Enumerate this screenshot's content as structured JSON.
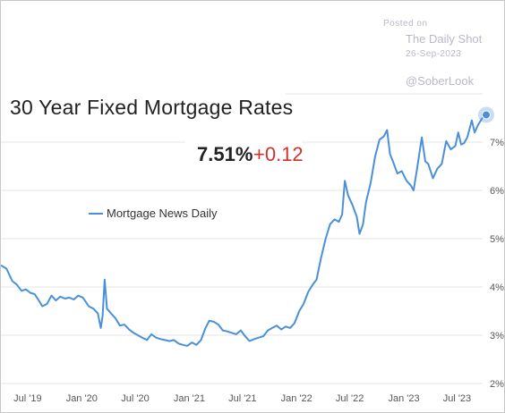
{
  "watermark": {
    "posted": "Posted on",
    "source": "The Daily Shot",
    "date": "26-Sep-2023",
    "handle": "@SoberLook"
  },
  "colors": {
    "series": "#4a90d9",
    "change": "#d0312d",
    "grid": "#e6e6e6"
  },
  "chart_data": {
    "type": "line",
    "title": "30 Year Fixed Mortgage Rates",
    "current_value": "7.51%",
    "change": "+0.12",
    "legend_position": "left",
    "grid": true,
    "y_axis_side": "right",
    "ylim": [
      2.0,
      8.0
    ],
    "xlim": [
      "2019-04-01",
      "2023-09-26"
    ],
    "y_ticks": [
      {
        "value": 2,
        "label": "2%"
      },
      {
        "value": 3,
        "label": "3%"
      },
      {
        "value": 4,
        "label": "4%"
      },
      {
        "value": 5,
        "label": "5%"
      },
      {
        "value": 6,
        "label": "6%"
      },
      {
        "value": 7,
        "label": "7%"
      }
    ],
    "x_ticks": [
      {
        "date": "2019-07-01",
        "label": "Jul '19"
      },
      {
        "date": "2020-01-01",
        "label": "Jan '20"
      },
      {
        "date": "2020-07-01",
        "label": "Jul '20"
      },
      {
        "date": "2021-01-01",
        "label": "Jan '21"
      },
      {
        "date": "2021-07-01",
        "label": "Jul '21"
      },
      {
        "date": "2022-01-01",
        "label": "Jan '22"
      },
      {
        "date": "2022-07-01",
        "label": "Jul '22"
      },
      {
        "date": "2023-01-01",
        "label": "Jan '23"
      },
      {
        "date": "2023-07-01",
        "label": "Jul '23"
      }
    ],
    "series": [
      {
        "name": "Mortgage News Daily",
        "points": [
          [
            "2019-04-01",
            4.45
          ],
          [
            "2019-04-20",
            4.38
          ],
          [
            "2019-05-10",
            4.12
          ],
          [
            "2019-05-25",
            4.05
          ],
          [
            "2019-06-10",
            3.92
          ],
          [
            "2019-06-25",
            3.95
          ],
          [
            "2019-07-10",
            3.88
          ],
          [
            "2019-07-25",
            3.85
          ],
          [
            "2019-08-10",
            3.7
          ],
          [
            "2019-08-20",
            3.6
          ],
          [
            "2019-09-05",
            3.65
          ],
          [
            "2019-09-20",
            3.82
          ],
          [
            "2019-10-05",
            3.72
          ],
          [
            "2019-10-20",
            3.8
          ],
          [
            "2019-11-05",
            3.76
          ],
          [
            "2019-11-20",
            3.78
          ],
          [
            "2019-12-05",
            3.74
          ],
          [
            "2019-12-20",
            3.82
          ],
          [
            "2020-01-05",
            3.78
          ],
          [
            "2020-01-25",
            3.6
          ],
          [
            "2020-02-10",
            3.55
          ],
          [
            "2020-02-25",
            3.45
          ],
          [
            "2020-03-06",
            3.15
          ],
          [
            "2020-03-12",
            3.4
          ],
          [
            "2020-03-19",
            4.15
          ],
          [
            "2020-03-27",
            3.55
          ],
          [
            "2020-04-10",
            3.45
          ],
          [
            "2020-04-25",
            3.35
          ],
          [
            "2020-05-10",
            3.2
          ],
          [
            "2020-05-25",
            3.22
          ],
          [
            "2020-06-10",
            3.12
          ],
          [
            "2020-06-25",
            3.05
          ],
          [
            "2020-07-10",
            3.0
          ],
          [
            "2020-07-25",
            2.95
          ],
          [
            "2020-08-10",
            2.9
          ],
          [
            "2020-08-25",
            3.02
          ],
          [
            "2020-09-10",
            2.95
          ],
          [
            "2020-09-25",
            2.92
          ],
          [
            "2020-10-10",
            2.9
          ],
          [
            "2020-10-25",
            2.88
          ],
          [
            "2020-11-10",
            2.9
          ],
          [
            "2020-11-25",
            2.83
          ],
          [
            "2020-12-10",
            2.8
          ],
          [
            "2020-12-25",
            2.78
          ],
          [
            "2021-01-10",
            2.85
          ],
          [
            "2021-01-25",
            2.8
          ],
          [
            "2021-02-10",
            2.9
          ],
          [
            "2021-02-25",
            3.15
          ],
          [
            "2021-03-10",
            3.3
          ],
          [
            "2021-03-25",
            3.28
          ],
          [
            "2021-04-10",
            3.22
          ],
          [
            "2021-04-25",
            3.1
          ],
          [
            "2021-05-10",
            3.08
          ],
          [
            "2021-05-25",
            3.05
          ],
          [
            "2021-06-10",
            3.02
          ],
          [
            "2021-06-25",
            3.1
          ],
          [
            "2021-07-10",
            2.98
          ],
          [
            "2021-07-25",
            2.88
          ],
          [
            "2021-08-10",
            2.92
          ],
          [
            "2021-08-25",
            2.95
          ],
          [
            "2021-09-10",
            2.98
          ],
          [
            "2021-09-25",
            3.1
          ],
          [
            "2021-10-10",
            3.15
          ],
          [
            "2021-10-25",
            3.2
          ],
          [
            "2021-11-10",
            3.12
          ],
          [
            "2021-11-25",
            3.18
          ],
          [
            "2021-12-10",
            3.15
          ],
          [
            "2021-12-25",
            3.25
          ],
          [
            "2022-01-10",
            3.5
          ],
          [
            "2022-01-25",
            3.65
          ],
          [
            "2022-02-10",
            3.9
          ],
          [
            "2022-02-25",
            4.05
          ],
          [
            "2022-03-10",
            4.15
          ],
          [
            "2022-03-25",
            4.6
          ],
          [
            "2022-04-10",
            5.0
          ],
          [
            "2022-04-25",
            5.3
          ],
          [
            "2022-05-10",
            5.4
          ],
          [
            "2022-05-25",
            5.35
          ],
          [
            "2022-06-05",
            5.5
          ],
          [
            "2022-06-14",
            6.2
          ],
          [
            "2022-06-25",
            5.9
          ],
          [
            "2022-07-10",
            5.7
          ],
          [
            "2022-07-25",
            5.45
          ],
          [
            "2022-08-03",
            5.1
          ],
          [
            "2022-08-15",
            5.3
          ],
          [
            "2022-08-25",
            5.75
          ],
          [
            "2022-09-10",
            6.15
          ],
          [
            "2022-09-25",
            6.7
          ],
          [
            "2022-10-10",
            7.05
          ],
          [
            "2022-10-25",
            7.12
          ],
          [
            "2022-11-05",
            7.25
          ],
          [
            "2022-11-15",
            6.75
          ],
          [
            "2022-11-25",
            6.6
          ],
          [
            "2022-12-10",
            6.35
          ],
          [
            "2022-12-25",
            6.4
          ],
          [
            "2023-01-10",
            6.2
          ],
          [
            "2023-01-25",
            6.1
          ],
          [
            "2023-02-03",
            6.0
          ],
          [
            "2023-02-15",
            6.45
          ],
          [
            "2023-03-03",
            7.1
          ],
          [
            "2023-03-15",
            6.6
          ],
          [
            "2023-03-25",
            6.55
          ],
          [
            "2023-04-10",
            6.25
          ],
          [
            "2023-04-25",
            6.45
          ],
          [
            "2023-05-10",
            6.55
          ],
          [
            "2023-05-25",
            7.02
          ],
          [
            "2023-06-10",
            6.85
          ],
          [
            "2023-06-25",
            6.92
          ],
          [
            "2023-07-05",
            7.2
          ],
          [
            "2023-07-15",
            6.95
          ],
          [
            "2023-07-25",
            6.98
          ],
          [
            "2023-08-05",
            7.1
          ],
          [
            "2023-08-20",
            7.45
          ],
          [
            "2023-08-30",
            7.2
          ],
          [
            "2023-09-10",
            7.35
          ],
          [
            "2023-09-26",
            7.51
          ]
        ]
      }
    ]
  }
}
